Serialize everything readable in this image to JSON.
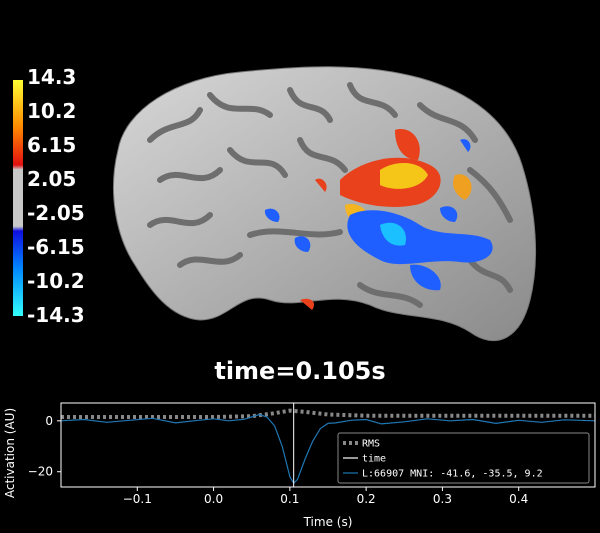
{
  "colorbar": {
    "labels": [
      "14.3",
      "10.2",
      "6.15",
      "2.05",
      "-2.05",
      "-6.15",
      "-10.2",
      "-14.3"
    ]
  },
  "time_title": "time=0.105s",
  "chart_data": {
    "type": "line",
    "xlabel": "Time (s)",
    "ylabel": "Activation (AU)",
    "xlim": [
      -0.2,
      0.5
    ],
    "ylim": [
      -26,
      7
    ],
    "xticks": [
      "−0.1",
      "0.0",
      "0.1",
      "0.2",
      "0.3",
      "0.4"
    ],
    "xtick_values": [
      -0.1,
      0.0,
      0.1,
      0.2,
      0.3,
      0.4
    ],
    "yticks": [
      "0",
      "−20"
    ],
    "ytick_values": [
      0,
      -20
    ],
    "time_marker": 0.105,
    "legend": {
      "placement": "lower-right",
      "entries": [
        "RMS",
        "time",
        "L:66907  MNI: -41.6, -35.5,   9.2"
      ]
    },
    "series": [
      {
        "name": "RMS",
        "style": "dotted",
        "color": "#888888",
        "x": [
          -0.2,
          -0.1,
          0.0,
          0.05,
          0.08,
          0.1,
          0.12,
          0.15,
          0.2,
          0.3,
          0.4,
          0.5
        ],
        "y": [
          1.5,
          1.5,
          1.5,
          1.8,
          3.0,
          4.0,
          3.5,
          2.5,
          2.0,
          2.0,
          2.0,
          2.0
        ]
      },
      {
        "name": "L:66907  MNI: -41.6, -35.5,   9.2",
        "style": "solid",
        "color": "#1f77b4",
        "x": [
          -0.2,
          -0.17,
          -0.14,
          -0.11,
          -0.08,
          -0.05,
          -0.02,
          0.0,
          0.02,
          0.04,
          0.05,
          0.06,
          0.07,
          0.08,
          0.09,
          0.1,
          0.105,
          0.11,
          0.12,
          0.13,
          0.14,
          0.15,
          0.16,
          0.18,
          0.2,
          0.22,
          0.25,
          0.28,
          0.31,
          0.34,
          0.37,
          0.4,
          0.43,
          0.46,
          0.5
        ],
        "y": [
          0.0,
          0.5,
          -0.6,
          0.2,
          1.0,
          -0.8,
          0.2,
          0.8,
          0.0,
          0.6,
          1.5,
          2.5,
          1.5,
          -2.0,
          -10.0,
          -22.0,
          -24.5,
          -23.0,
          -15.0,
          -8.0,
          -3.0,
          -1.0,
          -0.8,
          0.2,
          0.5,
          -1.2,
          -0.4,
          0.8,
          0.0,
          0.5,
          -1.0,
          0.2,
          -0.6,
          0.4,
          0.0
        ]
      }
    ]
  }
}
